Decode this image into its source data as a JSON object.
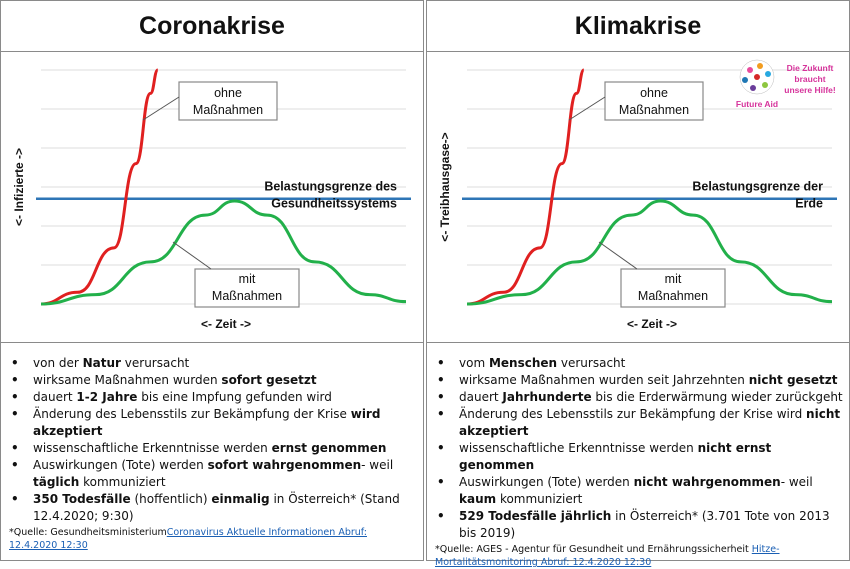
{
  "panels": [
    {
      "title": "Coronakrise",
      "ylabel": "<- Infizierte ->",
      "xlabel": "<- Zeit ->",
      "threshold_label": [
        "Belastungsgrenze des",
        "Gesundheitssystems"
      ],
      "label_without": [
        "ohne",
        "Maßnahmen"
      ],
      "label_with": [
        "mit",
        "Maßnahmen"
      ],
      "bullets": [
        [
          "von der ",
          {
            "b": "Natur"
          },
          " verursacht"
        ],
        [
          "wirksame Maßnahmen wurden  ",
          {
            "b": "sofort gesetzt"
          }
        ],
        [
          "dauert ",
          {
            "b": "1-2 Jahre"
          },
          " bis eine Impfung gefunden wird"
        ],
        [
          "Änderung des Lebensstils zur Bekämpfung der Krise ",
          {
            "b": "wird akzeptiert"
          }
        ],
        [
          "wissenschaftliche Erkenntnisse werden ",
          {
            "b": "ernst genommen"
          }
        ],
        [
          "Auswirkungen (Tote) werden ",
          {
            "b": "sofort wahrgenommen"
          },
          "- weil ",
          {
            "b": "täglich"
          },
          " kommuniziert"
        ],
        [
          {
            "b": "350 Todesfälle"
          },
          " (hoffentlich) ",
          {
            "b": "einmalig"
          },
          " in Österreich* (Stand 12.4.2020; 9:30)"
        ]
      ],
      "source_prefix": "*Quelle: Gesundheitsministerium",
      "source_link": "Coronavirus Aktuelle Informationen Abruf: 12.4.2020 12:30"
    },
    {
      "title": "Klimakrise",
      "ylabel": "<- Treibhausgase->",
      "xlabel": "<- Zeit ->",
      "threshold_label": [
        "Belastungsgrenze der",
        "Erde"
      ],
      "label_without": [
        "ohne",
        "Maßnahmen"
      ],
      "label_with": [
        "mit",
        "Maßnahmen"
      ],
      "bullets": [
        [
          "vom ",
          {
            "b": "Menschen"
          },
          " verursacht"
        ],
        [
          "wirksame Maßnahmen wurden seit Jahrzehnten  ",
          {
            "b": "nicht gesetzt"
          }
        ],
        [
          "dauert ",
          {
            "b": "Jahrhunderte"
          },
          " bis die Erderwärmung wieder zurückgeht"
        ],
        [
          "Änderung des Lebensstils zur Bekämpfung der Krise wird ",
          {
            "b": "nicht akzeptiert"
          }
        ],
        [
          "wissenschaftliche Erkenntnisse werden ",
          {
            "b": "nicht ernst genommen"
          }
        ],
        [
          "Auswirkungen (Tote) werden ",
          {
            "b": "nicht wahrgenommen"
          },
          "- weil ",
          {
            "b": "kaum"
          },
          " kommuniziert"
        ],
        [
          {
            "b": "529 Todesfälle jährlich"
          },
          " in Österreich* (3.701 Tote von 2013 bis 2019)"
        ]
      ],
      "source_prefix": "*Quelle: AGES - Agentur für Gesundheit und Ernährungssicherheit ",
      "source_link": "Hitze-Mortalitätsmonitoring Abruf: 12.4.2020 12:30",
      "logo": {
        "name": "Future Aid",
        "slogan": [
          "Die Zukunft",
          "braucht",
          "unsere Hilfe!"
        ]
      }
    }
  ],
  "chart_data": [
    {
      "type": "line",
      "title": "Coronakrise",
      "ylabel": "<- Infizierte ->",
      "xlabel": "<- Zeit ->",
      "xlim": [
        0,
        1
      ],
      "ylim": [
        0,
        1
      ],
      "grid": true,
      "threshold": {
        "y": 0.45,
        "label": "Belastungsgrenze des Gesundheitssystems",
        "color": "#2e75b6"
      },
      "series": [
        {
          "name": "ohne Maßnahmen",
          "color": "#e02020",
          "x": [
            0.0,
            0.1,
            0.2,
            0.26,
            0.3,
            0.32
          ],
          "y": [
            0.0,
            0.05,
            0.24,
            0.6,
            0.9,
            1.0
          ]
        },
        {
          "name": "mit Maßnahmen",
          "color": "#22b04a",
          "x": [
            0.0,
            0.15,
            0.3,
            0.45,
            0.53,
            0.62,
            0.75,
            0.9,
            1.0
          ],
          "y": [
            0.0,
            0.04,
            0.18,
            0.38,
            0.44,
            0.38,
            0.18,
            0.04,
            0.01
          ]
        }
      ]
    },
    {
      "type": "line",
      "title": "Klimakrise",
      "ylabel": "<- Treibhausgase->",
      "xlabel": "<- Zeit ->",
      "xlim": [
        0,
        1
      ],
      "ylim": [
        0,
        1
      ],
      "grid": true,
      "threshold": {
        "y": 0.45,
        "label": "Belastungsgrenze der Erde",
        "color": "#2e75b6"
      },
      "series": [
        {
          "name": "ohne Maßnahmen",
          "color": "#e02020",
          "x": [
            0.0,
            0.1,
            0.2,
            0.26,
            0.3,
            0.32
          ],
          "y": [
            0.0,
            0.05,
            0.24,
            0.6,
            0.9,
            1.0
          ]
        },
        {
          "name": "mit Maßnahmen",
          "color": "#22b04a",
          "x": [
            0.0,
            0.15,
            0.3,
            0.45,
            0.53,
            0.62,
            0.75,
            0.9,
            1.0
          ],
          "y": [
            0.0,
            0.04,
            0.18,
            0.38,
            0.44,
            0.38,
            0.18,
            0.04,
            0.01
          ]
        }
      ]
    }
  ]
}
